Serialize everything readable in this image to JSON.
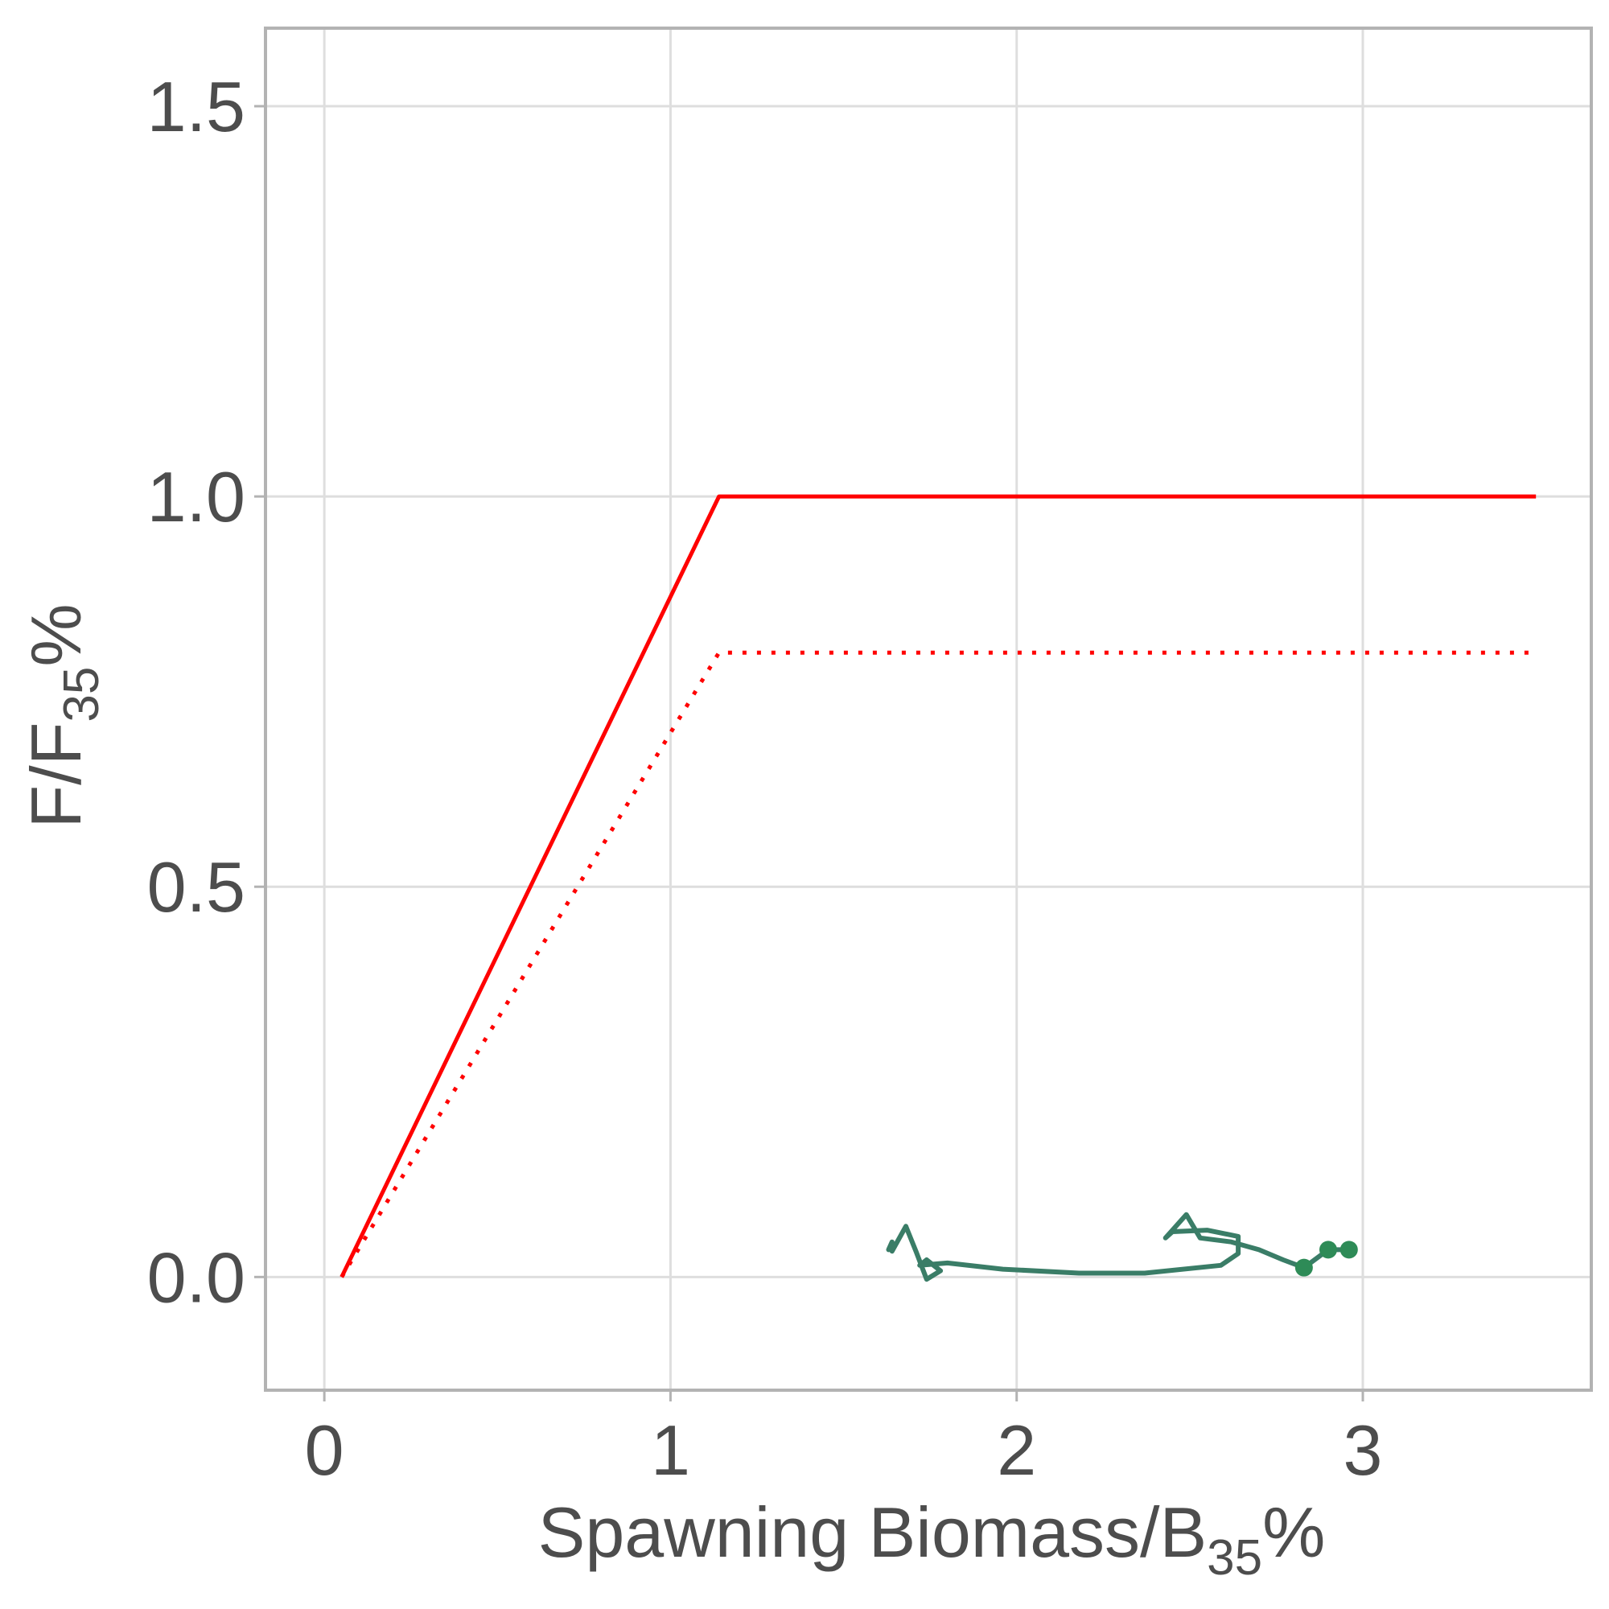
{
  "chart_data": {
    "type": "line",
    "title": "",
    "xlabel": {
      "main": "Spawning Biomass/B",
      "sub": "35",
      "suffix": "%"
    },
    "ylabel": {
      "main": "F/F",
      "sub": "35",
      "suffix": "%"
    },
    "xlim": [
      -0.17,
      3.66
    ],
    "ylim": [
      -0.145,
      1.6
    ],
    "xticks": [
      0,
      1,
      2,
      3
    ],
    "xtick_labels": [
      "0",
      "1",
      "2",
      "3"
    ],
    "yticks": [
      0.0,
      0.5,
      1.0,
      1.5
    ],
    "ytick_labels": [
      "0.0",
      "0.5",
      "1.0",
      "1.5"
    ],
    "grid": true,
    "legend": "none",
    "colors": {
      "grid": "#dedede",
      "frame": "#b3b3b3",
      "ofl": "#ff0000",
      "abc": "#ff0000",
      "trajectory": "#3a7d67",
      "recent_points": "#2e8b57"
    },
    "series": [
      {
        "style": "solid",
        "x": [
          0.05,
          1.14,
          3.5
        ],
        "y": [
          0.0,
          1.0,
          1.0
        ]
      },
      {
        "style": "dotted",
        "x": [
          0.05,
          1.14,
          3.5
        ],
        "y": [
          0.0,
          0.8,
          0.8
        ]
      },
      {
        "style": "trajectory",
        "x": [
          1.63,
          1.64,
          1.64,
          1.68,
          1.71,
          1.74,
          1.78,
          1.74,
          1.72,
          1.8,
          1.96,
          2.18,
          2.37,
          2.59,
          2.64,
          2.64,
          2.55,
          2.45,
          2.43,
          2.47,
          2.49,
          2.53,
          2.62,
          2.7,
          2.77,
          2.83,
          2.9,
          2.96
        ],
        "y": [
          0.035,
          0.045,
          0.033,
          0.065,
          0.032,
          -0.003,
          0.008,
          0.022,
          0.015,
          0.018,
          0.01,
          0.005,
          0.005,
          0.015,
          0.03,
          0.052,
          0.06,
          0.058,
          0.05,
          0.07,
          0.08,
          0.05,
          0.045,
          0.035,
          0.022,
          0.012,
          0.035,
          0.035
        ]
      },
      {
        "style": "points",
        "x": [
          2.83,
          2.9,
          2.96
        ],
        "y": [
          0.012,
          0.035,
          0.035
        ]
      }
    ]
  }
}
